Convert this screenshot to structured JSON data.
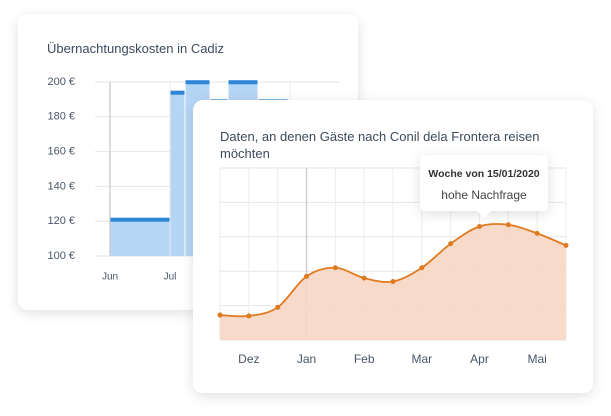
{
  "chart_data": [
    {
      "type": "bar",
      "title": "Übernachtungskosten in Cadiz",
      "categories": [
        "Jun",
        "Jul",
        null,
        null,
        null,
        null
      ],
      "values": [
        122,
        195,
        201,
        190,
        201,
        190
      ],
      "color": "#b5d5f5",
      "cap_color": "#2f86d6",
      "ylim": [
        100,
        200
      ],
      "yticks": [
        {
          "value": 100,
          "label": "100 €"
        },
        {
          "value": 120,
          "label": "120 €"
        },
        {
          "value": 140,
          "label": "140 €"
        },
        {
          "value": 160,
          "label": "160 €"
        },
        {
          "value": 180,
          "label": "180 €"
        },
        {
          "value": 200,
          "label": "200 €"
        }
      ],
      "grid": true
    },
    {
      "type": "area",
      "title": "Daten, an denen Gäste nach Conil dela Frontera reisen möchten",
      "categories": [
        null,
        "Dez",
        null,
        "Jan",
        null,
        "Feb",
        null,
        "Mar",
        null,
        "Apr",
        null,
        "Mai",
        null
      ],
      "values": [
        14.5,
        14,
        19,
        37,
        42,
        36,
        34,
        42,
        56,
        66,
        67,
        62,
        55
      ],
      "color": "#e07a1f",
      "fill": "#f7d6c4",
      "ylim": [
        0,
        100
      ],
      "yticks": [
        0,
        20,
        40,
        60,
        80,
        100
      ],
      "grid": true,
      "annotations": [
        "Woche von 15/01/2020",
        "hohe Nachfrage"
      ]
    }
  ]
}
